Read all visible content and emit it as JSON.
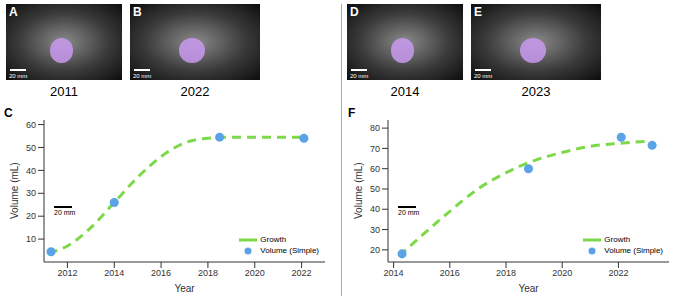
{
  "images": [
    {
      "label": "A",
      "year": "2011",
      "scale": "20 mm"
    },
    {
      "label": "B",
      "year": "2022",
      "scale": "20 mm"
    },
    {
      "label": "D",
      "year": "2014",
      "scale": "20 mm"
    },
    {
      "label": "E",
      "year": "2023",
      "scale": "20 mm"
    }
  ],
  "chart_data": [
    {
      "panel": "C",
      "type": "line",
      "x_label": "Year",
      "y_label": "Volume (mL)",
      "xlim": [
        2011,
        2023
      ],
      "xticks": [
        2012,
        2014,
        2016,
        2018,
        2020,
        2022
      ],
      "ylim": [
        0,
        62
      ],
      "yticks": [
        10,
        20,
        30,
        40,
        50,
        60
      ],
      "legend": "lower right",
      "annotations": [
        "20 mm"
      ],
      "series": [
        {
          "name": "Growth",
          "type": "line",
          "line_style": "dashed",
          "color": "#7dd84a",
          "x": [
            2011.2,
            2012,
            2013,
            2014,
            2015,
            2016,
            2017,
            2018,
            2019,
            2020,
            2021,
            2022
          ],
          "values": [
            4,
            7,
            15,
            26,
            37,
            46,
            52,
            54,
            54.5,
            54.5,
            54.5,
            54.5
          ]
        },
        {
          "name": "Volume (Simple)",
          "type": "scatter",
          "marker": "circle",
          "color": "#5ba3e6",
          "x": [
            2011.3,
            2014.0,
            2018.5,
            2022.1
          ],
          "values": [
            4.5,
            26,
            54.5,
            54
          ]
        }
      ]
    },
    {
      "panel": "F",
      "type": "line",
      "x_label": "Year",
      "y_label": "Volume (mL)",
      "xlim": [
        2013.8,
        2023.8
      ],
      "xticks": [
        2014,
        2016,
        2018,
        2020,
        2022
      ],
      "ylim": [
        14,
        84
      ],
      "yticks": [
        20,
        30,
        40,
        50,
        60,
        70,
        80
      ],
      "legend": "lower right",
      "annotations": [
        "20 mm"
      ],
      "series": [
        {
          "name": "Growth",
          "type": "line",
          "line_style": "dashed",
          "color": "#7dd84a",
          "x": [
            2014.2,
            2015,
            2016,
            2017,
            2018,
            2019,
            2020,
            2021,
            2022,
            2023
          ],
          "values": [
            17,
            27,
            39,
            50,
            58,
            64,
            68,
            71,
            72.5,
            73.5
          ]
        },
        {
          "name": "Volume (Simple)",
          "type": "scatter",
          "marker": "circle",
          "color": "#5ba3e6",
          "x": [
            2014.3,
            2018.8,
            2022.1,
            2023.2
          ],
          "values": [
            18,
            60,
            75.5,
            71.5
          ]
        }
      ]
    }
  ]
}
